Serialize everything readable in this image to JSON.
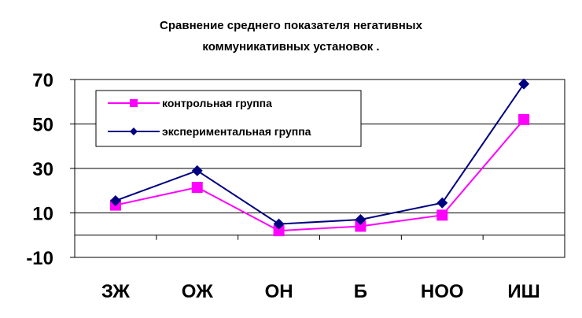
{
  "chart_data": {
    "type": "line",
    "title_lines": [
      "Сравнение среднего показателя негативных",
      "коммуникативных установок ."
    ],
    "categories": [
      "ЗЖ",
      "ОЖ",
      "ОН",
      "Б",
      "НОО",
      "ИШ"
    ],
    "yticks": [
      "70",
      "50",
      "30",
      "10",
      "-10"
    ],
    "ylim": [
      -10,
      70
    ],
    "grid": true,
    "legend_position": "top-left",
    "series": [
      {
        "name": "контрольная группа",
        "values": [
          13.5,
          21.5,
          2,
          4,
          9,
          52
        ],
        "color": "#ff00ff",
        "marker": "square"
      },
      {
        "name": "экспериментальная группа",
        "values": [
          15.5,
          29,
          5,
          7,
          14.5,
          68
        ],
        "color": "#000080",
        "marker": "diamond"
      }
    ]
  }
}
